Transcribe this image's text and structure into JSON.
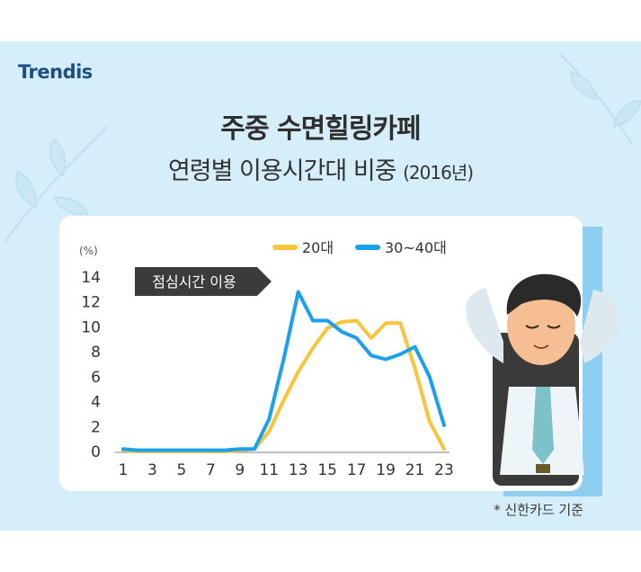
{
  "logo": {
    "text": "Trendis"
  },
  "header": {
    "title": "주중 수면힐링카페",
    "subtitle": "연령별 이용시간대 비중",
    "subtitle_year": "(2016년)"
  },
  "footnote": "* 신한카드 기준",
  "colors": {
    "background": "#d6eef9",
    "series_20s": "#f7c43d",
    "series_30_40s": "#1aa0ec",
    "card": "#ffffff"
  },
  "chart_data": {
    "type": "line",
    "y_unit_label": "(%)",
    "ylim": [
      0,
      14
    ],
    "yticks": [
      "0",
      "2",
      "4",
      "6",
      "8",
      "10",
      "12",
      "14"
    ],
    "xlim": [
      1,
      23
    ],
    "xticks": [
      "1",
      "3",
      "5",
      "7",
      "9",
      "11",
      "13",
      "15",
      "17",
      "19",
      "21",
      "23"
    ],
    "grid": false,
    "legend": "top-right",
    "callout": "점심시간 이용",
    "x": [
      1,
      2,
      3,
      4,
      5,
      6,
      7,
      8,
      9,
      10,
      11,
      12,
      13,
      14,
      15,
      16,
      17,
      18,
      19,
      20,
      21,
      22,
      23
    ],
    "series": [
      {
        "name": "20대",
        "color": "#f7c43d",
        "values": [
          0.1,
          0,
          0,
          0,
          0,
          0,
          0,
          0,
          0.1,
          0.2,
          1.6,
          4.1,
          6.4,
          8.3,
          9.9,
          10.4,
          10.5,
          9.1,
          10.3,
          10.3,
          6.7,
          2.4,
          0.2
        ]
      },
      {
        "name": "30~40대",
        "color": "#1aa0ec",
        "values": [
          0.2,
          0.1,
          0.1,
          0.1,
          0.1,
          0.1,
          0.1,
          0.1,
          0.2,
          0.2,
          2.6,
          7.4,
          12.8,
          10.5,
          10.5,
          9.6,
          9.1,
          7.7,
          7.4,
          7.8,
          8.4,
          6.0,
          2.1
        ]
      }
    ]
  }
}
